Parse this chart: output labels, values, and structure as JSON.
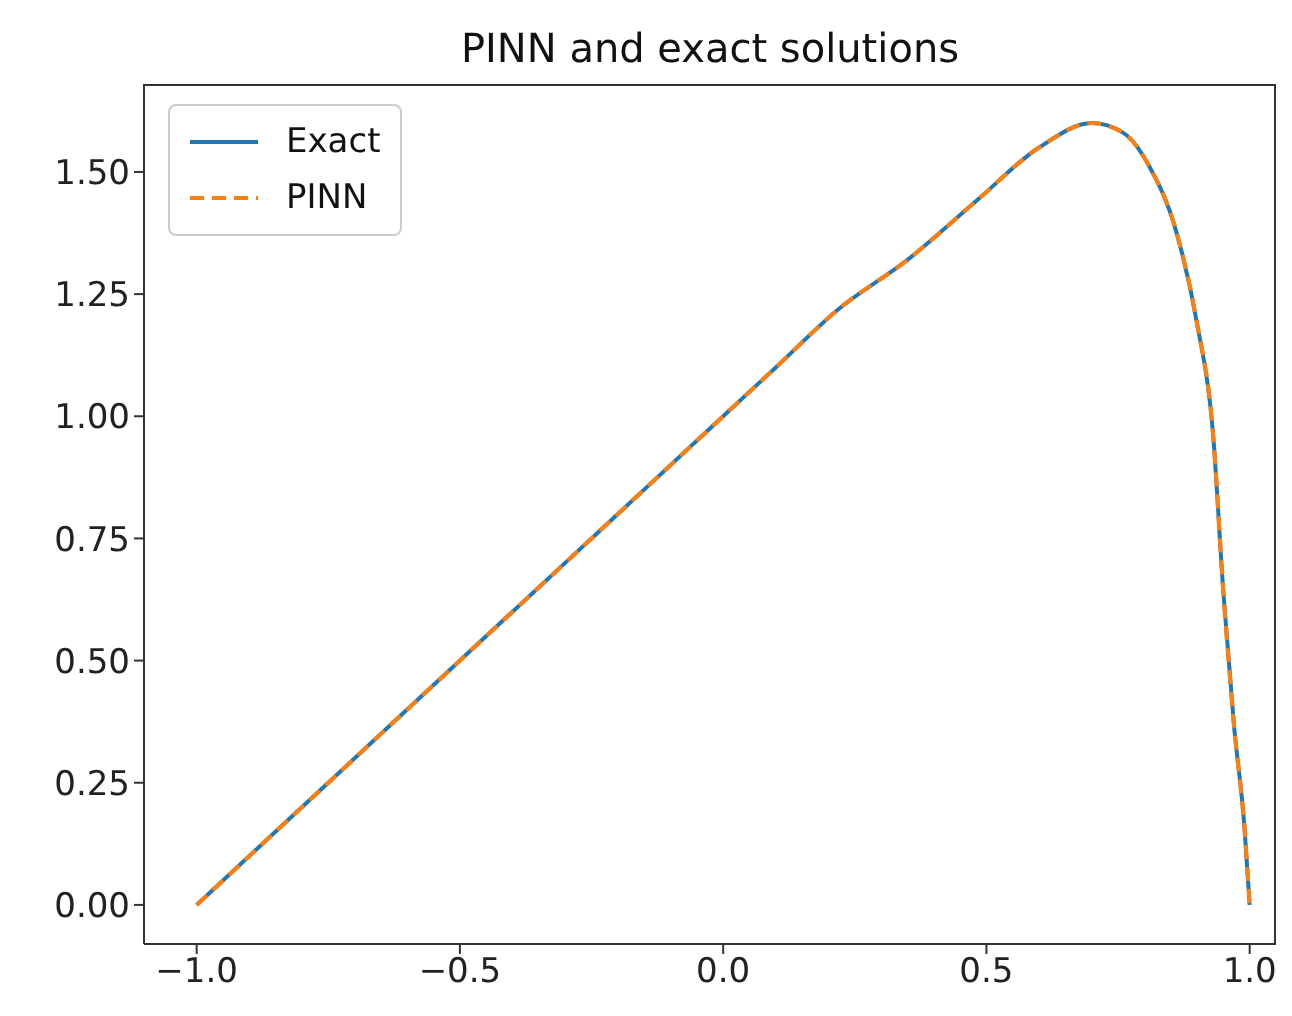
{
  "chart_data": {
    "type": "line",
    "title": "PINN and exact solutions",
    "x": [
      -1,
      -0.75,
      -0.5,
      -0.25,
      0,
      0.1,
      0.22,
      0.35,
      0.48,
      0.6,
      0.7,
      0.76,
      0.81,
      0.86,
      0.9,
      0.93,
      0.95,
      0.97,
      0.99,
      1
    ],
    "series": [
      {
        "name": "Exact",
        "color": "#1f77b4",
        "line_style": "solid",
        "values": [
          0,
          0.25,
          0.5,
          0.75,
          1.0,
          1.1,
          1.22,
          1.32,
          1.44,
          1.55,
          1.6,
          1.58,
          1.51,
          1.38,
          1.19,
          0.97,
          0.64,
          0.37,
          0.16,
          0
        ]
      },
      {
        "name": "PINN",
        "color": "#ff7f0e",
        "line_style": "dashed",
        "values": [
          0,
          0.25,
          0.5,
          0.75,
          1.0,
          1.1,
          1.22,
          1.32,
          1.44,
          1.55,
          1.6,
          1.58,
          1.51,
          1.38,
          1.19,
          0.97,
          0.64,
          0.37,
          0.16,
          0
        ]
      }
    ],
    "xlim": [
      -1.1,
      1.05
    ],
    "ylim": [
      -0.08,
      1.68
    ],
    "xticks": [
      {
        "value": -1,
        "label": "−1.0"
      },
      {
        "value": -0.5,
        "label": "−0.5"
      },
      {
        "value": 0,
        "label": "0.0"
      },
      {
        "value": 0.5,
        "label": "0.5"
      },
      {
        "value": 1,
        "label": "1.0"
      }
    ],
    "yticks": [
      {
        "value": 0,
        "label": "0.00"
      },
      {
        "value": 0.25,
        "label": "0.25"
      },
      {
        "value": 0.5,
        "label": "0.50"
      },
      {
        "value": 0.75,
        "label": "0.75"
      },
      {
        "value": 1,
        "label": "1.00"
      },
      {
        "value": 1.25,
        "label": "1.25"
      },
      {
        "value": 1.5,
        "label": "1.50"
      }
    ],
    "legend": "top left",
    "grid": false,
    "marker": "none"
  }
}
